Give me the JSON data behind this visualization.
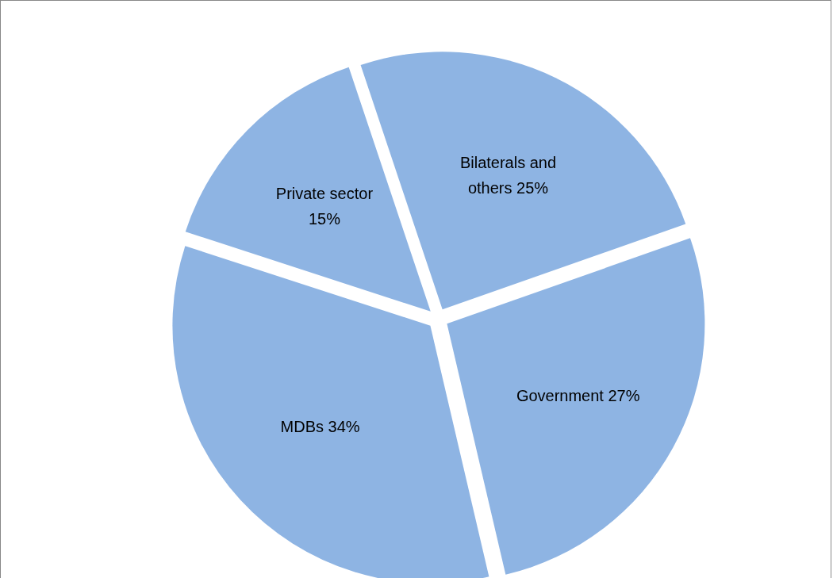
{
  "chart_data": {
    "type": "pie",
    "categories": [
      "Bilaterals and others",
      "Government",
      "MDBs",
      "Private sector"
    ],
    "values": [
      25,
      27,
      34,
      15
    ],
    "value_labels": [
      "25%",
      "27%",
      "34%",
      "15%"
    ],
    "colors": [
      "#8eb4e3",
      "#8eb4e3",
      "#8eb4e3",
      "#8eb4e3"
    ]
  }
}
